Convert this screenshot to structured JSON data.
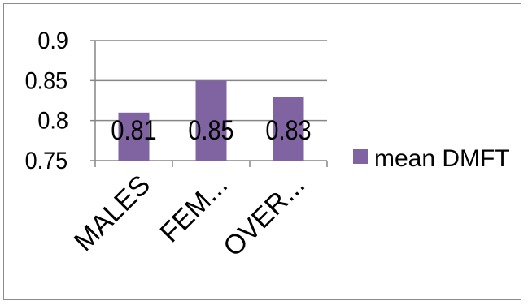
{
  "chart_data": {
    "type": "bar",
    "title": "",
    "xlabel": "",
    "ylabel": "",
    "categories": [
      "MALES",
      "FEM...",
      "OVER..."
    ],
    "series": [
      {
        "name": "mean DMFT",
        "values": [
          0.81,
          0.85,
          0.83
        ],
        "color": "#8064a2"
      }
    ],
    "data_labels": [
      "0.81",
      "0.85",
      "0.83"
    ],
    "y_ticks": [
      "0.9",
      "0.85",
      "0.8",
      "0.75"
    ],
    "ylim": [
      0.75,
      0.9
    ],
    "grid": true,
    "legend_position": "right"
  }
}
